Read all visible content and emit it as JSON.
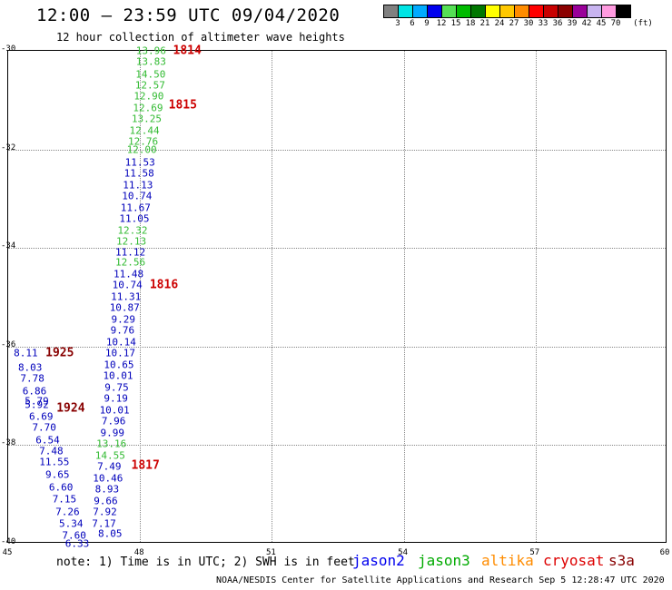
{
  "header": {
    "title": "12:00 – 23:59 UTC 09/04/2020",
    "subtitle": "12 hour collection of altimeter wave heights"
  },
  "legend": {
    "unit": "(ft)",
    "swatches": [
      "#808080",
      "#00e5e5",
      "#00aaff",
      "#0000ee",
      "#55e055",
      "#00bb00",
      "#007700",
      "#ffff00",
      "#ffc800",
      "#ff8c00",
      "#ff0000",
      "#c80000",
      "#8b0000",
      "#990099",
      "#c8b4f0",
      "#ff9be0",
      "#000000"
    ],
    "labels": [
      "3",
      "6",
      "9",
      "12",
      "15",
      "18",
      "21",
      "24",
      "27",
      "30",
      "33",
      "36",
      "39",
      "42",
      "45",
      "70"
    ]
  },
  "map": {
    "lon_range": [
      45,
      60
    ],
    "lat_range": [
      -40,
      -30
    ],
    "lat_ticks": [
      "-30",
      "-32",
      "-34",
      "-36",
      "-38",
      "-40"
    ],
    "lon_ticks": [
      "45",
      "48",
      "51",
      "54",
      "57",
      "60"
    ],
    "satellite_colors": {
      "jason2": "#0000bb",
      "jason3": "#33bb33",
      "altika": "#ff8c00",
      "cryosat": "#cc0000",
      "s3a": "#880000"
    }
  },
  "readings": [
    {
      "lon": 48.25,
      "lat": -30.0,
      "v": "13.96",
      "sat": "jason3"
    },
    {
      "lon": 48.25,
      "lat": -30.23,
      "v": "13.83",
      "sat": "jason3"
    },
    {
      "lon": 48.24,
      "lat": -30.47,
      "v": "14.50",
      "sat": "jason3"
    },
    {
      "lon": 48.23,
      "lat": -30.7,
      "v": "12.57",
      "sat": "jason3"
    },
    {
      "lon": 48.2,
      "lat": -30.93,
      "v": "12.90",
      "sat": "jason3"
    },
    {
      "lon": 48.18,
      "lat": -31.16,
      "v": "12.69",
      "sat": "jason3"
    },
    {
      "lon": 48.15,
      "lat": -31.39,
      "v": "13.25",
      "sat": "jason3"
    },
    {
      "lon": 48.1,
      "lat": -31.62,
      "v": "12.44",
      "sat": "jason3"
    },
    {
      "lon": 48.07,
      "lat": -31.85,
      "v": "12.76",
      "sat": "jason3"
    },
    {
      "lon": 48.04,
      "lat": -32.0,
      "v": "12.00",
      "sat": "jason3"
    },
    {
      "lon": 48.0,
      "lat": -32.26,
      "v": "11.53",
      "sat": "jason2"
    },
    {
      "lon": 47.98,
      "lat": -32.49,
      "v": "11.58",
      "sat": "jason2"
    },
    {
      "lon": 47.95,
      "lat": -32.72,
      "v": "11.13",
      "sat": "jason2"
    },
    {
      "lon": 47.93,
      "lat": -32.95,
      "v": "10.74",
      "sat": "jason2"
    },
    {
      "lon": 47.9,
      "lat": -33.18,
      "v": "11.67",
      "sat": "jason2"
    },
    {
      "lon": 47.87,
      "lat": -33.41,
      "v": "11.05",
      "sat": "jason2"
    },
    {
      "lon": 47.83,
      "lat": -33.64,
      "v": "12.32",
      "sat": "jason3"
    },
    {
      "lon": 47.8,
      "lat": -33.87,
      "v": "12.13",
      "sat": "jason3"
    },
    {
      "lon": 47.78,
      "lat": -34.08,
      "v": "11.12",
      "sat": "jason2"
    },
    {
      "lon": 47.78,
      "lat": -34.3,
      "v": "12.56",
      "sat": "jason3"
    },
    {
      "lon": 47.74,
      "lat": -34.53,
      "v": "11.48",
      "sat": "jason2"
    },
    {
      "lon": 47.71,
      "lat": -34.76,
      "v": "10.74",
      "sat": "jason2"
    },
    {
      "lon": 47.68,
      "lat": -34.99,
      "v": "11.31",
      "sat": "jason2"
    },
    {
      "lon": 47.65,
      "lat": -35.22,
      "v": "10.87",
      "sat": "jason2"
    },
    {
      "lon": 47.62,
      "lat": -35.45,
      "v": "9.29",
      "sat": "jason2"
    },
    {
      "lon": 47.6,
      "lat": -35.68,
      "v": "9.76",
      "sat": "jason2"
    },
    {
      "lon": 47.57,
      "lat": -35.91,
      "v": "10.14",
      "sat": "jason2"
    },
    {
      "lon": 47.55,
      "lat": -36.14,
      "v": "10.17",
      "sat": "jason2"
    },
    {
      "lon": 47.52,
      "lat": -36.37,
      "v": "10.65",
      "sat": "jason2"
    },
    {
      "lon": 47.5,
      "lat": -36.6,
      "v": "10.01",
      "sat": "jason2"
    },
    {
      "lon": 47.47,
      "lat": -36.83,
      "v": "9.75",
      "sat": "jason2"
    },
    {
      "lon": 47.45,
      "lat": -37.06,
      "v": "9.19",
      "sat": "jason2"
    },
    {
      "lon": 47.42,
      "lat": -37.29,
      "v": "10.01",
      "sat": "jason2"
    },
    {
      "lon": 47.4,
      "lat": -37.52,
      "v": "7.96",
      "sat": "jason2"
    },
    {
      "lon": 47.37,
      "lat": -37.75,
      "v": "9.99",
      "sat": "jason2"
    },
    {
      "lon": 47.35,
      "lat": -37.98,
      "v": "13.16",
      "sat": "jason3"
    },
    {
      "lon": 47.32,
      "lat": -38.21,
      "v": "14.55",
      "sat": "jason3"
    },
    {
      "lon": 47.3,
      "lat": -38.44,
      "v": "7.49",
      "sat": "jason2"
    },
    {
      "lon": 47.27,
      "lat": -38.67,
      "v": "10.46",
      "sat": "jason2"
    },
    {
      "lon": 47.25,
      "lat": -38.9,
      "v": "8.93",
      "sat": "jason2"
    },
    {
      "lon": 47.22,
      "lat": -39.13,
      "v": "9.66",
      "sat": "jason2"
    },
    {
      "lon": 47.2,
      "lat": -39.36,
      "v": "7.92",
      "sat": "jason2"
    },
    {
      "lon": 47.18,
      "lat": -39.59,
      "v": "7.17",
      "sat": "jason2"
    },
    {
      "lon": 47.32,
      "lat": -39.8,
      "v": "8.05",
      "sat": "jason2"
    },
    {
      "lon": 45.4,
      "lat": -36.14,
      "v": "8.11",
      "sat": "jason2"
    },
    {
      "lon": 45.5,
      "lat": -36.42,
      "v": "8.03",
      "sat": "jason2"
    },
    {
      "lon": 45.55,
      "lat": -36.65,
      "v": "7.78",
      "sat": "jason2"
    },
    {
      "lon": 45.6,
      "lat": -36.9,
      "v": "6.86",
      "sat": "jason2"
    },
    {
      "lon": 45.65,
      "lat": -37.1,
      "v": "5.79",
      "sat": "jason2"
    },
    {
      "lon": 45.65,
      "lat": -37.18,
      "v": "5.92",
      "sat": "jason2"
    },
    {
      "lon": 45.75,
      "lat": -37.42,
      "v": "6.69",
      "sat": "jason2"
    },
    {
      "lon": 45.82,
      "lat": -37.65,
      "v": "7.70",
      "sat": "jason2"
    },
    {
      "lon": 45.9,
      "lat": -37.9,
      "v": "6.54",
      "sat": "jason2"
    },
    {
      "lon": 45.98,
      "lat": -38.12,
      "v": "7.48",
      "sat": "jason2"
    },
    {
      "lon": 46.05,
      "lat": -38.35,
      "v": "11.55",
      "sat": "jason2"
    },
    {
      "lon": 46.12,
      "lat": -38.6,
      "v": "9.65",
      "sat": "jason2"
    },
    {
      "lon": 46.2,
      "lat": -38.85,
      "v": "6.60",
      "sat": "jason2"
    },
    {
      "lon": 46.28,
      "lat": -39.1,
      "v": "7.15",
      "sat": "jason2"
    },
    {
      "lon": 46.35,
      "lat": -39.35,
      "v": "7.26",
      "sat": "jason2"
    },
    {
      "lon": 46.43,
      "lat": -39.6,
      "v": "5.34",
      "sat": "jason2"
    },
    {
      "lon": 46.5,
      "lat": -39.83,
      "v": "7.60",
      "sat": "jason2"
    },
    {
      "lon": 46.57,
      "lat": -40.0,
      "v": "6.33",
      "sat": "jason2"
    }
  ],
  "passes": [
    {
      "lon": 48.75,
      "lat": -30.0,
      "label": "1814",
      "sat": "cryosat"
    },
    {
      "lon": 48.65,
      "lat": -31.1,
      "label": "1815",
      "sat": "cryosat"
    },
    {
      "lon": 48.22,
      "lat": -34.75,
      "label": "1816",
      "sat": "cryosat"
    },
    {
      "lon": 47.8,
      "lat": -38.42,
      "label": "1817",
      "sat": "cryosat"
    },
    {
      "lon": 45.85,
      "lat": -36.14,
      "label": "1925",
      "sat": "s3a"
    },
    {
      "lon": 46.1,
      "lat": -37.25,
      "label": "1924",
      "sat": "s3a"
    }
  ],
  "footer": {
    "note": "note:  1) Time is in UTC;  2) SWH is in feet",
    "satellites": [
      {
        "name": "jason2",
        "color": "#0000ee"
      },
      {
        "name": "jason3",
        "color": "#00aa00"
      },
      {
        "name": "altika",
        "color": "#ff8c00"
      },
      {
        "name": "cryosat",
        "color": "#dd0000"
      },
      {
        "name": "s3a",
        "color": "#880000"
      }
    ],
    "credit": "NOAA/NESDIS Center for Satellite Applications and Research   Sep  5 12:28:47 UTC 2020"
  }
}
